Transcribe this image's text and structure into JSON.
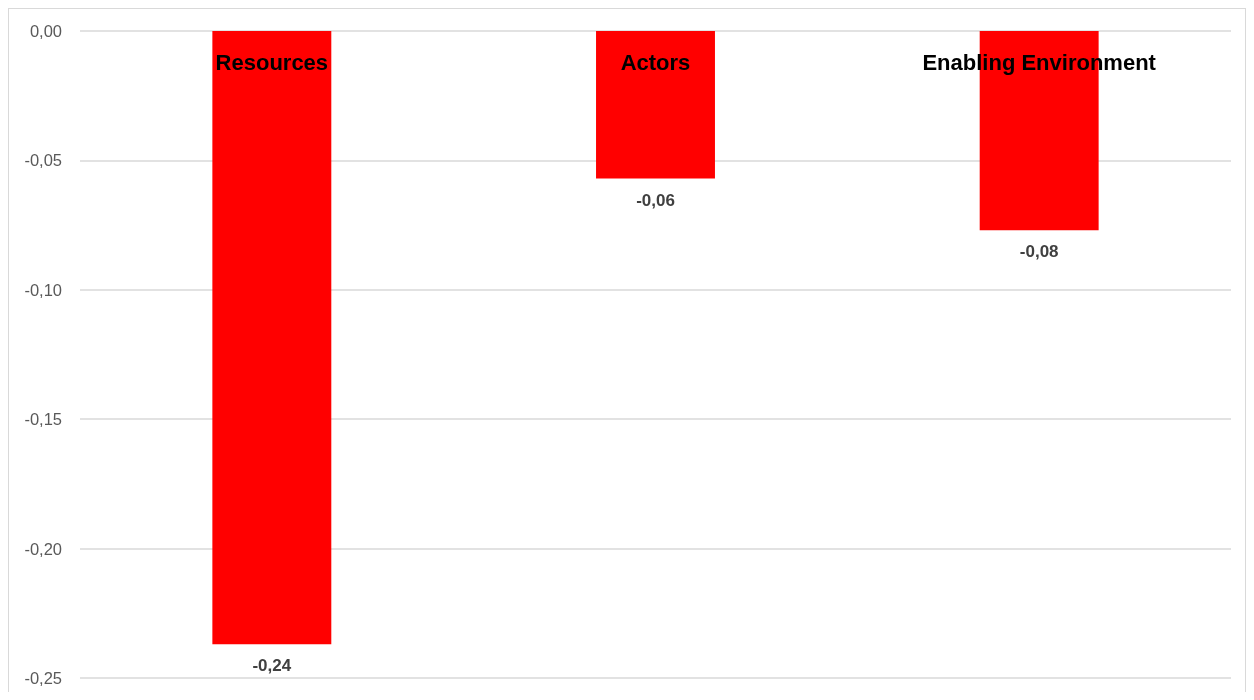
{
  "chart_data": {
    "type": "bar",
    "categories": [
      "Resources",
      "Actors",
      "Enabling Environment"
    ],
    "values": [
      -0.237,
      -0.057,
      -0.077
    ],
    "color": "#ff0000",
    "value_labels": [
      "-0,24",
      "-0,06",
      "-0,08"
    ],
    "ylim": [
      -0.25,
      0
    ],
    "yticks": [
      {
        "value": -0.25,
        "label": "-0,25"
      },
      {
        "value": -0.2,
        "label": "-0,20"
      },
      {
        "value": -0.15,
        "label": "-0,15"
      },
      {
        "value": -0.1,
        "label": "-0,10"
      },
      {
        "value": -0.05,
        "label": "-0,05"
      },
      {
        "value": 0,
        "label": "0,00"
      }
    ],
    "grid": "y"
  }
}
